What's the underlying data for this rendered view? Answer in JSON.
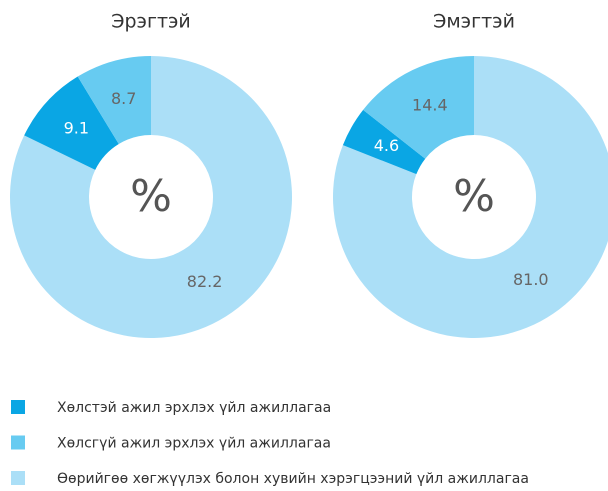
{
  "legend": {
    "labels": [
      "Хөлстэй ажил эрхлэх үйл ажиллагаа",
      "Хөлсгүй ажил эрхлэх үйл ажиллагаа",
      "Өөрийгөө хөгжүүлэх болон хувийн хэрэгцээний үйл ажиллагаа"
    ],
    "colors": [
      "#0aa6e4",
      "#67cbf1",
      "#abdff7"
    ]
  },
  "chart_data": [
    {
      "type": "pie",
      "title": "Эрэгтэй",
      "center_label": "%",
      "values": [
        9.1,
        8.7,
        82.2
      ],
      "draw_order": [
        2,
        0,
        1
      ]
    },
    {
      "type": "pie",
      "title": "Эмэгтэй",
      "center_label": "%",
      "values": [
        4.6,
        14.4,
        81
      ],
      "value_labels": [
        "4.6",
        "14.4",
        "81.0"
      ],
      "draw_order": [
        2,
        0,
        1
      ]
    }
  ]
}
